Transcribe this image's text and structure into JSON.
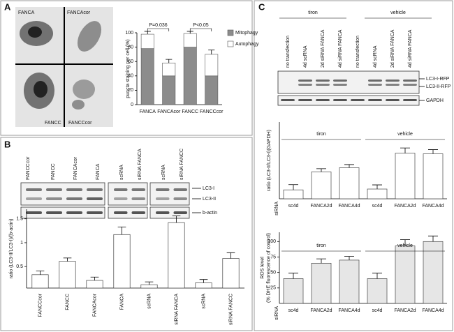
{
  "panels": [
    {
      "letter": "A",
      "image_labels": [
        "FANCA",
        "FANCAcor",
        "FANCC",
        "FANCCcor"
      ]
    },
    {
      "letter": "B",
      "blot_columns": [
        "FANCCcor",
        "FANCC",
        "FANCAcor",
        "FANCA",
        "scRNA",
        "siRNA FANCA",
        "scRNA",
        "siRNA FANCC"
      ],
      "blot_labels": [
        "LC3-I",
        "LC3-II",
        "b-actin"
      ]
    },
    {
      "letter": "C",
      "blot_groups": [
        "tiron",
        "vehicle"
      ],
      "blot_columns": [
        "no transfection",
        "4d scRNA",
        "2d siRNA FANCA",
        "4d siRNA FANCA",
        "no transfection",
        "4d scRNA",
        "2d siRNA FANCA",
        "4d siRNA FANCA"
      ],
      "blot_labels": [
        "LC3-I-RFP",
        "LC3-II-RFP",
        "GAPDH"
      ]
    }
  ],
  "chart_data": [
    {
      "type": "bar",
      "ylabel": [
        "puncta staining per cell (%)"
      ],
      "categories": [
        "FANCA",
        "FANCAcor",
        "FANCC",
        "FANCCcor"
      ],
      "series": [
        {
          "name": "Mitophagy",
          "color": "#8c8c8c",
          "values": [
            78,
            40,
            80,
            40
          ]
        },
        {
          "name": "Autophagy",
          "color": "#ffffff",
          "values": [
            20,
            18,
            19,
            30
          ],
          "errors": [
            4,
            5,
            3,
            6
          ]
        }
      ],
      "ylim": [
        0,
        100
      ],
      "yticks": [
        0,
        20,
        40,
        60,
        80,
        100
      ],
      "annotations": [
        "P=0.036",
        "P<0.05"
      ]
    },
    {
      "type": "bar",
      "ylabel": [
        "ratio (LC3-II/LC3-I)/(b-actin)"
      ],
      "categories": [
        "FANCCcor",
        "FANCC",
        "FANCAcor",
        "FANCA",
        "scRNA",
        "siRNA FANCA",
        "scRNA",
        "siRNA FANCC"
      ],
      "values": [
        0.33,
        0.61,
        0.21,
        1.17,
        0.12,
        1.42,
        0.16,
        0.67
      ],
      "errors": [
        0.08,
        0.07,
        0.07,
        0.16,
        0.06,
        0.14,
        0.07,
        0.12
      ],
      "color": "#ffffff",
      "ylim": [
        0.05,
        1.7
      ],
      "yticks": [
        0.5,
        1,
        1.5
      ]
    },
    {
      "type": "bar",
      "ylabel": [
        "ratio (LC3-II/LC3-I)(GAPDH)"
      ],
      "categories": [
        "sc4d",
        "FANCA2d",
        "FANCA4d",
        "sc4d",
        "FANCA2d",
        "FANCA4d"
      ],
      "groups": [
        "tiron",
        "vehicle"
      ],
      "group_label": "siRNA",
      "values": [
        0.43,
        1.3,
        1.5,
        0.47,
        2.2,
        2.17
      ],
      "errors": [
        0.25,
        0.15,
        0.15,
        0.2,
        0.25,
        0.2
      ],
      "color": "#ffffff",
      "ylim": [
        0,
        3.7
      ]
    },
    {
      "type": "bar",
      "ylabel": [
        "ROS level",
        "(% DHE fluorescence of control)"
      ],
      "categories": [
        "sc4d",
        "FANCA2d",
        "FANCA4d",
        "sc4d",
        "FANCA2d",
        "FANCA4d"
      ],
      "groups": [
        "tiron",
        "vehicle"
      ],
      "group_label": "siRNA",
      "values": [
        40,
        65,
        70,
        40,
        93,
        100
      ],
      "errors": [
        9,
        7,
        6,
        9,
        10,
        9
      ],
      "color": "#e6e6e6",
      "ylim": [
        0,
        115
      ],
      "yticks": [
        25,
        50,
        75,
        100
      ]
    }
  ]
}
